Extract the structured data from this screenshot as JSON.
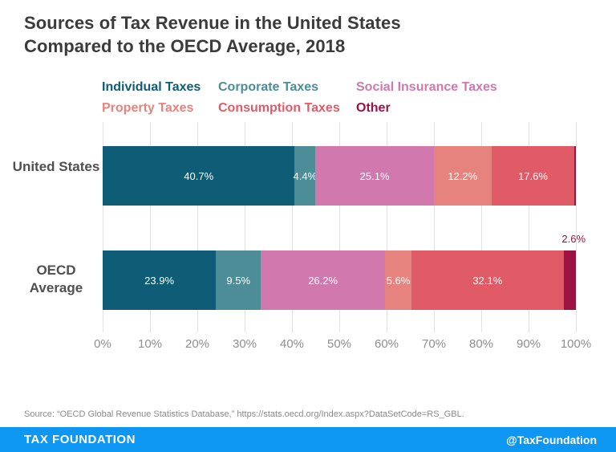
{
  "title": {
    "line1": "Sources of Tax Revenue in the United States",
    "line2": "Compared to the OECD Average, 2018"
  },
  "legend": {
    "items": [
      {
        "label": "Individual Taxes",
        "color": "#0e5c75"
      },
      {
        "label": "Corporate Taxes",
        "color": "#4c8d98"
      },
      {
        "label": "Social Insurance Taxes",
        "color": "#d178ae"
      },
      {
        "label": "Property Taxes",
        "color": "#e6837e"
      },
      {
        "label": "Consumption Taxes",
        "color": "#e15b67"
      },
      {
        "label": "Other",
        "color": "#9d1145"
      }
    ]
  },
  "chart_data": {
    "type": "bar",
    "subtype": "horizontal-stacked",
    "unit": "%",
    "xlim": [
      0,
      100
    ],
    "xticks": [
      "0%",
      "10%",
      "20%",
      "30%",
      "40%",
      "50%",
      "60%",
      "70%",
      "80%",
      "90%",
      "100%"
    ],
    "grid": "vertical",
    "legend_position": "top",
    "colors": {
      "Individual Taxes": "#0e5c75",
      "Corporate Taxes": "#4c8d98",
      "Social Insurance Taxes": "#d178ae",
      "Property Taxes": "#e6837e",
      "Consumption Taxes": "#e15b67",
      "Other": "#9d1145"
    },
    "categories": [
      "United States",
      "OECD Average"
    ],
    "series": [
      {
        "name": "Individual Taxes",
        "values": [
          40.7,
          23.9
        ]
      },
      {
        "name": "Corporate Taxes",
        "values": [
          4.4,
          9.5
        ]
      },
      {
        "name": "Social Insurance Taxes",
        "values": [
          25.1,
          26.2
        ]
      },
      {
        "name": "Property Taxes",
        "values": [
          12.2,
          5.6
        ]
      },
      {
        "name": "Consumption Taxes",
        "values": [
          17.6,
          32.1
        ]
      },
      {
        "name": "Other",
        "values": [
          0.3,
          2.6
        ]
      }
    ],
    "rows": [
      {
        "category": "United States",
        "segments": [
          {
            "name": "Individual Taxes",
            "value": 40.7,
            "label": "40.7%",
            "label_pos": "inside"
          },
          {
            "name": "Corporate Taxes",
            "value": 4.4,
            "label": "4.4%",
            "label_pos": "inside"
          },
          {
            "name": "Social Insurance Taxes",
            "value": 25.1,
            "label": "25.1%",
            "label_pos": "inside"
          },
          {
            "name": "Property Taxes",
            "value": 12.2,
            "label": "12.2%",
            "label_pos": "inside"
          },
          {
            "name": "Consumption Taxes",
            "value": 17.6,
            "label": "17.6%",
            "label_pos": "inside"
          },
          {
            "name": "Other",
            "value": 0.3,
            "label": "",
            "label_pos": "none"
          }
        ]
      },
      {
        "category": "OECD Average",
        "segments": [
          {
            "name": "Individual Taxes",
            "value": 23.9,
            "label": "23.9%",
            "label_pos": "inside"
          },
          {
            "name": "Corporate Taxes",
            "value": 9.5,
            "label": "9.5%",
            "label_pos": "inside"
          },
          {
            "name": "Social Insurance Taxes",
            "value": 26.2,
            "label": "26.2%",
            "label_pos": "inside"
          },
          {
            "name": "Property Taxes",
            "value": 5.6,
            "label": "5.6%",
            "label_pos": "inside"
          },
          {
            "name": "Consumption Taxes",
            "value": 32.1,
            "label": "32.1%",
            "label_pos": "inside"
          },
          {
            "name": "Other",
            "value": 2.6,
            "label": "2.6%",
            "label_pos": "above"
          }
        ]
      }
    ]
  },
  "source": "Source: “OECD Global Revenue Statistics Database,” https://stats.oecd.org/Index.aspx?DataSetCode=RS_GBL.",
  "footer": {
    "brand": "TAX FOUNDATION",
    "handle": "@TaxFoundation",
    "background": "#0d96f2"
  }
}
